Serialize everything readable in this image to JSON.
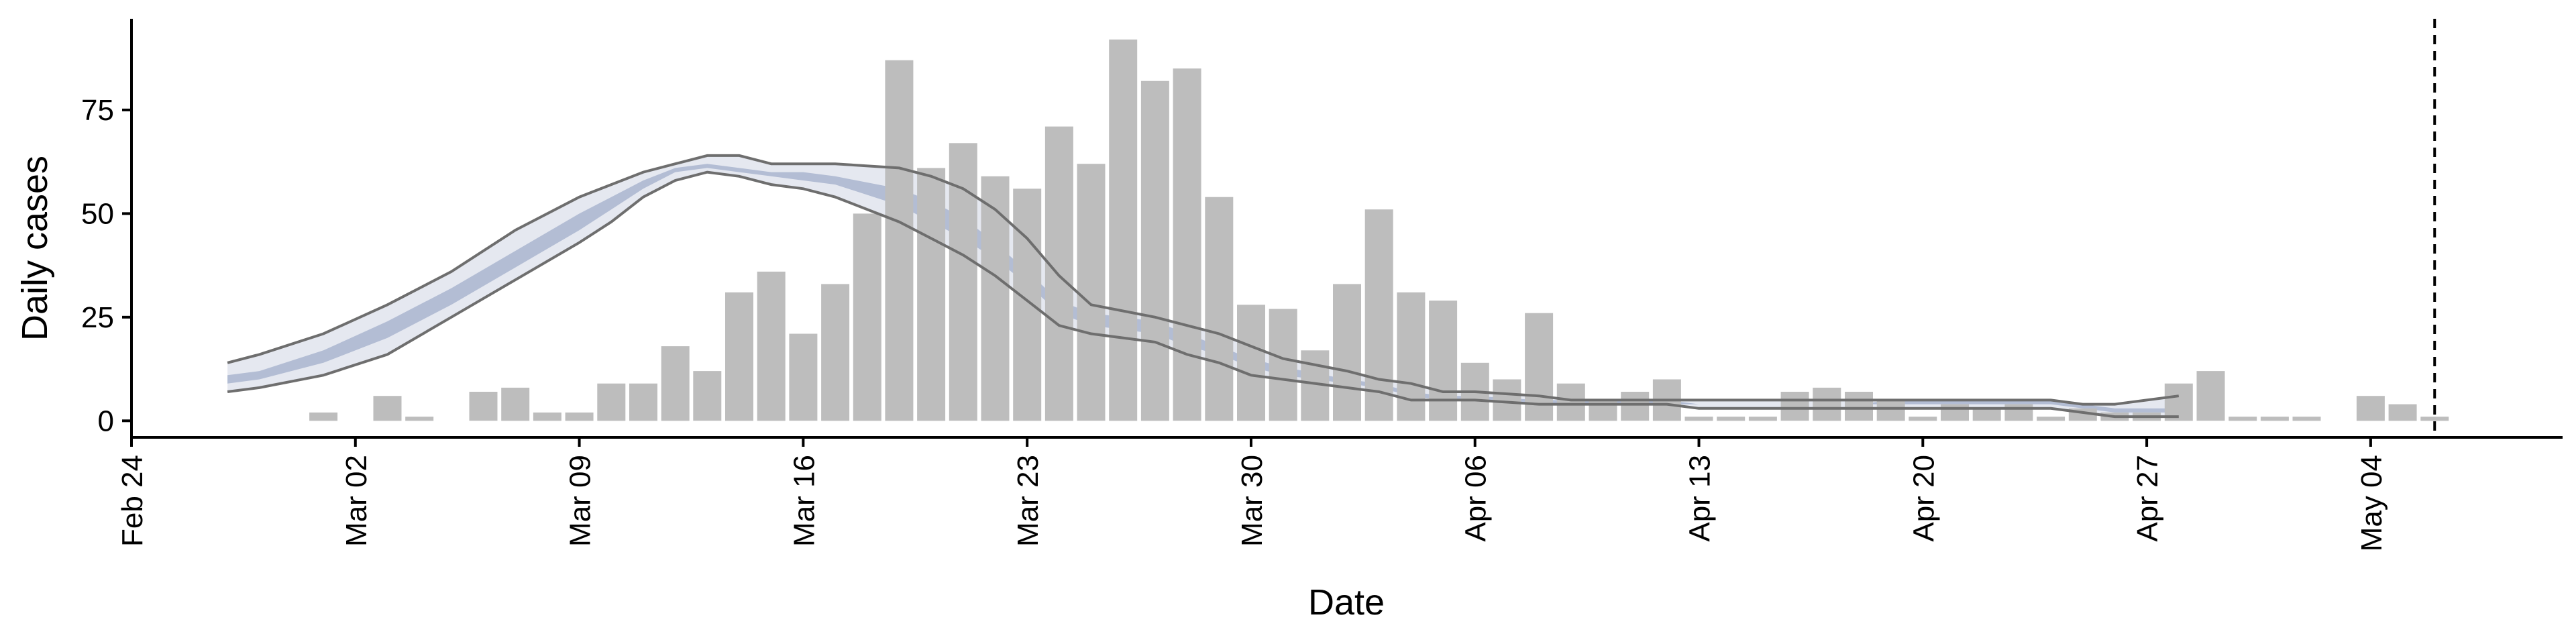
{
  "chart_data": {
    "type": "bar",
    "title": "",
    "xlabel": "Date",
    "ylabel": "Daily cases",
    "x_start": "2020-02-27",
    "x_tick_labels": [
      "Feb 24",
      "Mar 02",
      "Mar 09",
      "Mar 16",
      "Mar 23",
      "Mar 30",
      "Apr 06",
      "Apr 13",
      "Apr 20",
      "Apr 27",
      "May 04"
    ],
    "x_ticks": [
      "2020-02-24",
      "2020-03-02",
      "2020-03-09",
      "2020-03-16",
      "2020-03-23",
      "2020-03-30",
      "2020-04-06",
      "2020-04-13",
      "2020-04-20",
      "2020-04-27",
      "2020-05-04"
    ],
    "xlim": [
      "2020-02-24",
      "2020-05-10"
    ],
    "y_ticks": [
      0,
      25,
      50,
      75
    ],
    "ylim": [
      -4,
      97
    ],
    "grid": false,
    "vline_date": "2020-05-06",
    "colors": {
      "bars": "#bdbdbd",
      "band_outer": "#e5e8f0",
      "band_inner": "#b3bdd4",
      "band_line": "#6e6e6e",
      "axis": "#000000",
      "vline": "#000000"
    },
    "bars": {
      "dates": [
        "2020-02-28",
        "2020-02-29",
        "2020-03-01",
        "2020-03-02",
        "2020-03-03",
        "2020-03-04",
        "2020-03-05",
        "2020-03-06",
        "2020-03-07",
        "2020-03-08",
        "2020-03-09",
        "2020-03-10",
        "2020-03-11",
        "2020-03-12",
        "2020-03-13",
        "2020-03-14",
        "2020-03-15",
        "2020-03-16",
        "2020-03-17",
        "2020-03-18",
        "2020-03-19",
        "2020-03-20",
        "2020-03-21",
        "2020-03-22",
        "2020-03-23",
        "2020-03-24",
        "2020-03-25",
        "2020-03-26",
        "2020-03-27",
        "2020-03-28",
        "2020-03-29",
        "2020-03-30",
        "2020-03-31",
        "2020-04-01",
        "2020-04-02",
        "2020-04-03",
        "2020-04-04",
        "2020-04-05",
        "2020-04-06",
        "2020-04-07",
        "2020-04-08",
        "2020-04-09",
        "2020-04-10",
        "2020-04-11",
        "2020-04-12",
        "2020-04-13",
        "2020-04-14",
        "2020-04-15",
        "2020-04-16",
        "2020-04-17",
        "2020-04-18",
        "2020-04-19",
        "2020-04-20",
        "2020-04-21",
        "2020-04-22",
        "2020-04-23",
        "2020-04-24",
        "2020-04-25",
        "2020-04-26",
        "2020-04-27",
        "2020-04-28",
        "2020-04-29",
        "2020-04-30",
        "2020-05-01",
        "2020-05-02",
        "2020-05-03",
        "2020-05-04",
        "2020-05-05",
        "2020-05-06"
      ],
      "values": [
        0,
        0,
        2,
        0,
        6,
        1,
        0,
        7,
        8,
        2,
        2,
        9,
        9,
        18,
        12,
        31,
        36,
        21,
        33,
        50,
        87,
        61,
        67,
        59,
        56,
        71,
        62,
        92,
        82,
        85,
        54,
        28,
        27,
        17,
        33,
        51,
        31,
        29,
        14,
        10,
        26,
        9,
        5,
        7,
        10,
        1,
        1,
        1,
        7,
        8,
        7,
        5,
        1,
        4,
        3,
        4,
        1,
        3,
        2,
        2,
        9,
        12,
        1,
        1,
        1,
        0,
        6,
        4,
        1
      ]
    },
    "estimate_band": {
      "dates": [
        "2020-02-27",
        "2020-02-28",
        "2020-03-01",
        "2020-03-03",
        "2020-03-05",
        "2020-03-07",
        "2020-03-09",
        "2020-03-10",
        "2020-03-11",
        "2020-03-12",
        "2020-03-13",
        "2020-03-14",
        "2020-03-15",
        "2020-03-16",
        "2020-03-17",
        "2020-03-19",
        "2020-03-20",
        "2020-03-21",
        "2020-03-22",
        "2020-03-23",
        "2020-03-24",
        "2020-03-25",
        "2020-03-27",
        "2020-03-28",
        "2020-03-29",
        "2020-03-30",
        "2020-03-31",
        "2020-04-02",
        "2020-04-03",
        "2020-04-04",
        "2020-04-05",
        "2020-04-06",
        "2020-04-08",
        "2020-04-09",
        "2020-04-12",
        "2020-04-13",
        "2020-04-18",
        "2020-04-19",
        "2020-04-24",
        "2020-04-25",
        "2020-04-26",
        "2020-04-27",
        "2020-04-28"
      ],
      "lower_90": [
        7,
        8,
        11,
        16,
        25,
        34,
        43,
        48,
        54,
        58,
        60,
        59,
        57,
        56,
        54,
        48,
        44,
        40,
        35,
        29,
        23,
        21,
        19,
        16,
        14,
        11,
        10,
        8,
        7,
        5,
        5,
        5,
        4,
        4,
        4,
        3,
        3,
        3,
        3,
        2,
        1,
        1,
        1
      ],
      "lower_50": [
        9,
        10,
        14,
        20,
        28,
        37,
        46,
        51,
        56,
        60,
        61,
        60,
        59,
        58,
        57,
        52,
        48,
        44,
        39,
        33,
        26,
        23,
        21,
        18,
        16,
        13,
        11,
        9,
        8,
        6,
        5,
        5,
        4,
        4,
        4,
        4,
        4,
        4,
        4,
        3,
        2,
        2,
        2
      ],
      "upper_50": [
        11,
        12,
        17,
        24,
        32,
        41,
        50,
        54,
        58,
        61,
        62,
        61,
        60,
        60,
        59,
        56,
        53,
        49,
        43,
        36,
        29,
        26,
        24,
        21,
        18,
        15,
        13,
        10,
        9,
        7,
        6,
        6,
        5,
        5,
        5,
        4,
        4,
        5,
        5,
        4,
        3,
        3,
        3
      ],
      "upper_90": [
        14,
        16,
        21,
        28,
        36,
        46,
        54,
        57,
        60,
        62,
        64,
        64,
        62,
        62,
        62,
        61,
        59,
        56,
        51,
        44,
        35,
        28,
        25,
        23,
        21,
        18,
        15,
        12,
        10,
        9,
        7,
        7,
        6,
        5,
        5,
        5,
        5,
        5,
        5,
        4,
        4,
        5,
        6
      ]
    }
  }
}
